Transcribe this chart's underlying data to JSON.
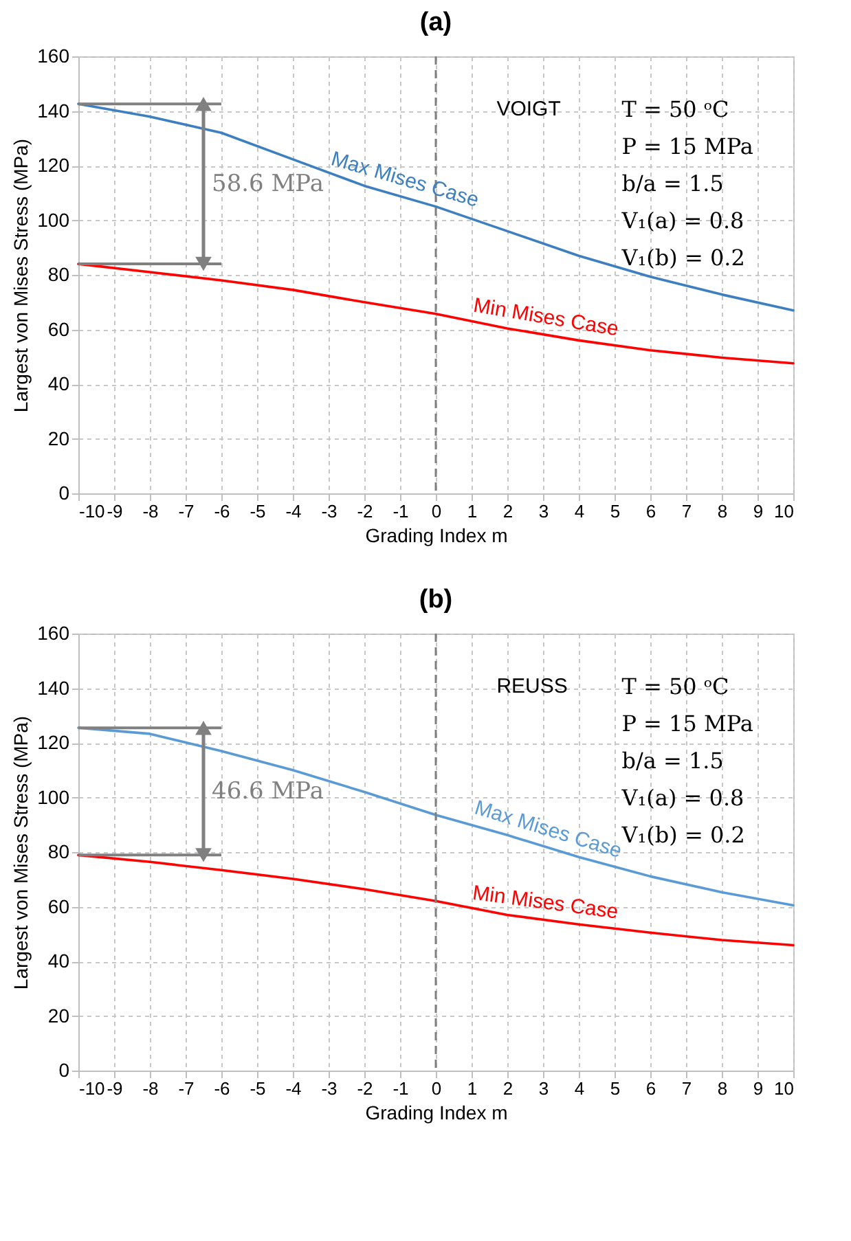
{
  "chart_data": [
    {
      "type": "line",
      "title": "(a)",
      "xlabel": "Grading Index m",
      "ylabel": "Largest von Mises Stress (MPa)",
      "x": [
        -10,
        -8,
        -6,
        -4,
        -2,
        0,
        2,
        4,
        6,
        8,
        10
      ],
      "series": [
        {
          "name": "Max Mises Case",
          "color": "#3d7fc1",
          "values": [
            142.6,
            137.9,
            132,
            122.3,
            112.6,
            105,
            96,
            87,
            79.3,
            72.8,
            67
          ]
        },
        {
          "name": "Min Mises Case",
          "color": "#ff0000",
          "values": [
            84,
            81,
            78,
            74.5,
            70,
            65.7,
            60.4,
            56,
            52.4,
            49.7,
            47.6
          ]
        }
      ],
      "xlim": [
        -10,
        10
      ],
      "xticks": [
        -10,
        -9,
        -8,
        -7,
        -6,
        -5,
        -4,
        -3,
        -2,
        -1,
        0,
        1,
        2,
        3,
        4,
        5,
        6,
        7,
        8,
        9,
        10
      ],
      "ylim": [
        0,
        160
      ],
      "yticks": [
        0,
        20,
        40,
        60,
        80,
        100,
        120,
        140,
        160
      ],
      "grid": true,
      "legend": false,
      "ref_lines": [
        {
          "axis": "x",
          "value": 0,
          "color": "#808080",
          "line_style": "dashed"
        }
      ],
      "annotations": [
        "VOIGT",
        "T = 50 ᵒC",
        "P = 15 MPa",
        "b/a = 1.5",
        "V₁(a) = 0.8",
        "V₁(b) = 0.2",
        "58.6 MPa"
      ]
    },
    {
      "type": "line",
      "title": "(b)",
      "xlabel": "Grading Index m",
      "ylabel": "Largest von Mises Stress (MPa)",
      "x": [
        -10,
        -8,
        -6,
        -4,
        -2,
        0,
        2,
        4,
        6,
        8,
        10
      ],
      "series": [
        {
          "name": "Max Mises Case",
          "color": "#5b9bd5",
          "values": [
            125.5,
            123.3,
            117,
            110,
            102,
            93.6,
            86.2,
            78.2,
            71.1,
            65.3,
            60.5
          ]
        },
        {
          "name": "Min Mises Case",
          "color": "#ff0000",
          "values": [
            78.9,
            76.4,
            73.4,
            70.2,
            66.4,
            62.1,
            57,
            53.5,
            50.5,
            47.8,
            45.9
          ]
        }
      ],
      "xlim": [
        -10,
        10
      ],
      "xticks": [
        -10,
        -9,
        -8,
        -7,
        -6,
        -5,
        -4,
        -3,
        -2,
        -1,
        0,
        1,
        2,
        3,
        4,
        5,
        6,
        7,
        8,
        9,
        10
      ],
      "ylim": [
        0,
        160
      ],
      "yticks": [
        0,
        20,
        40,
        60,
        80,
        100,
        120,
        140,
        160
      ],
      "grid": true,
      "legend": false,
      "ref_lines": [
        {
          "axis": "x",
          "value": 0,
          "color": "#808080",
          "line_style": "dashed"
        }
      ],
      "annotations": [
        "REUSS",
        "T = 50 ᵒC",
        "P = 15 MPa",
        "b/a = 1.5",
        "V₁(a) = 0.8",
        "V₁(b) = 0.2",
        "46.6 MPa"
      ]
    }
  ]
}
